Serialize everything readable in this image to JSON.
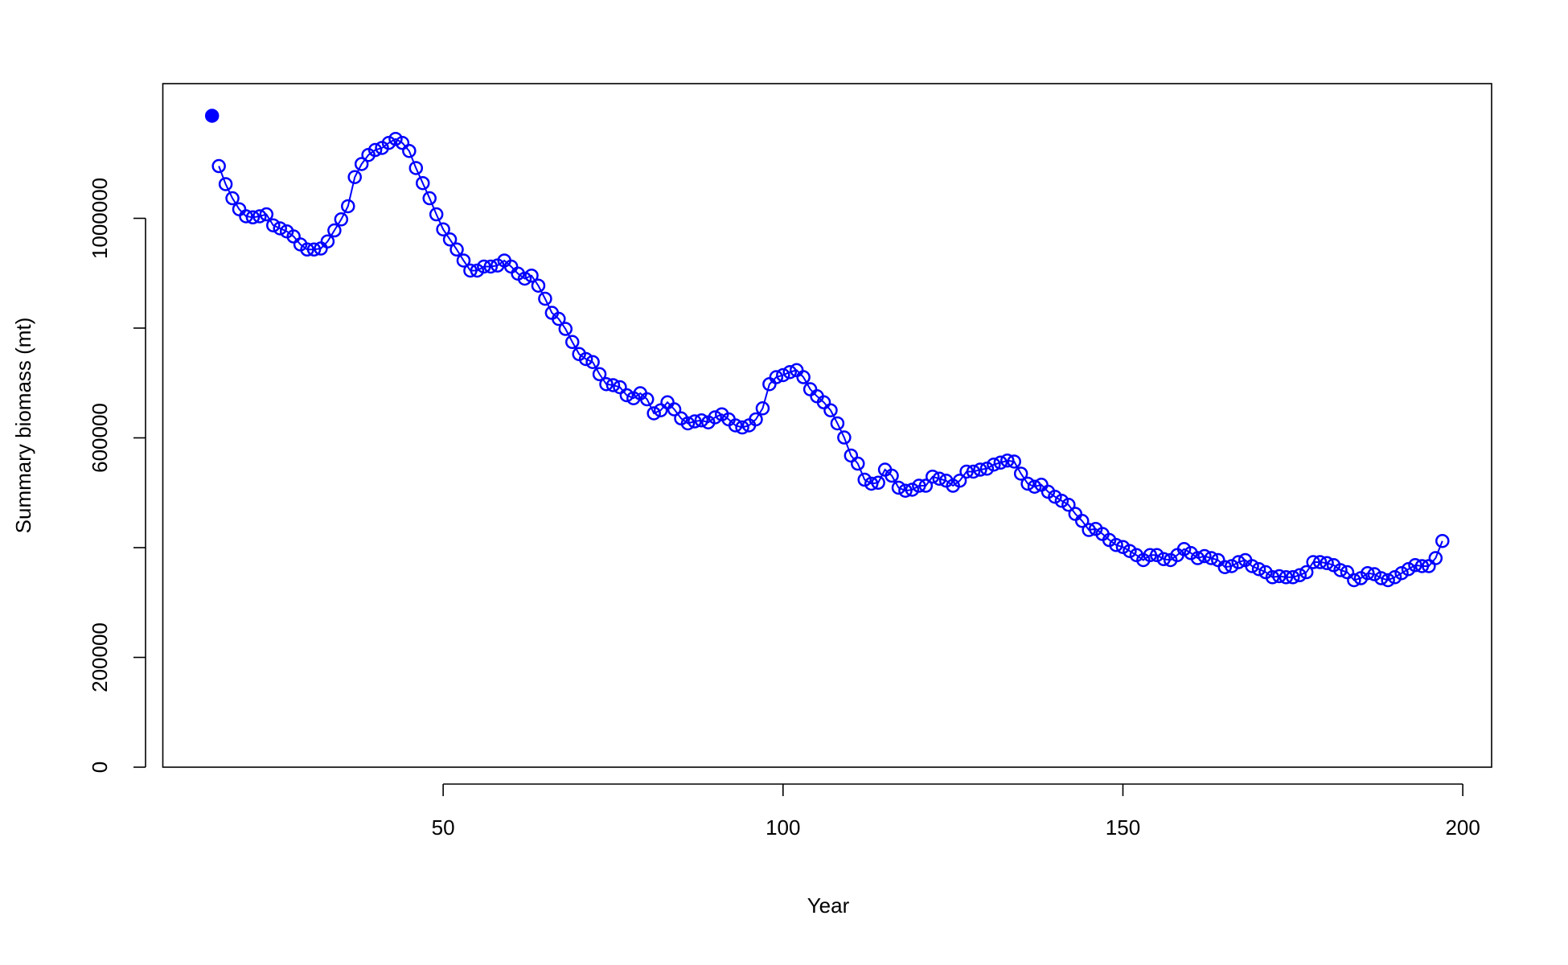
{
  "chart_data": {
    "type": "line",
    "xlabel": "Year",
    "ylabel": "Summary biomass (mt)",
    "xlim": [
      8.76,
      204.24
    ],
    "xticks": [
      50,
      100,
      150,
      200
    ],
    "ylim": [
      0,
      1245400
    ],
    "yticks": [
      0,
      200000,
      {
        "value": 400000,
        "label": null
      },
      600000,
      {
        "value": 800000,
        "label": null
      },
      1000000
    ],
    "series": [
      {
        "color": "#0000ff",
        "marker": "filled",
        "line": false,
        "x": [
          16
        ],
        "values": [
          1186800
        ]
      },
      {
        "color": "#0000ff",
        "marker": "open",
        "line": true,
        "x": [
          17,
          18,
          19,
          20,
          21,
          22,
          23,
          24,
          25,
          26,
          27,
          28,
          29,
          30,
          31,
          32,
          33,
          34,
          35,
          36,
          37,
          38,
          39,
          40,
          41,
          42,
          43,
          44,
          45,
          46,
          47,
          48,
          49,
          50,
          51,
          52,
          53,
          54,
          55,
          56,
          57,
          58,
          59,
          60,
          61,
          62,
          63,
          64,
          65,
          66,
          67,
          68,
          69,
          70,
          71,
          72,
          73,
          74,
          75,
          76,
          77,
          78,
          79,
          80,
          81,
          82,
          83,
          84,
          85,
          86,
          87,
          88,
          89,
          90,
          91,
          92,
          93,
          94,
          95,
          96,
          97,
          98,
          99,
          100,
          101,
          102,
          103,
          104,
          105,
          106,
          107,
          108,
          109,
          110,
          111,
          112,
          113,
          114,
          115,
          116,
          117,
          118,
          119,
          120,
          121,
          122,
          123,
          124,
          125,
          126,
          127,
          128,
          129,
          130,
          131,
          132,
          133,
          134,
          135,
          136,
          137,
          138,
          139,
          140,
          141,
          142,
          143,
          144,
          145,
          146,
          147,
          148,
          149,
          150,
          151,
          152,
          153,
          154,
          155,
          156,
          157,
          158,
          159,
          160,
          161,
          162,
          163,
          164,
          165,
          166,
          167,
          168,
          169,
          170,
          171,
          172,
          173,
          174,
          175,
          176,
          177,
          178,
          179,
          180,
          181,
          182,
          183,
          184,
          185,
          186,
          187,
          188,
          189,
          190,
          191,
          192,
          193,
          194,
          195,
          196,
          197
        ],
        "values": [
          1095200,
          1062300,
          1036600,
          1016500,
          1003700,
          1001800,
          1003700,
          1007300,
          987200,
          981700,
          976200,
          967000,
          952400,
          943200,
          943200,
          945000,
          957900,
          978000,
          998100,
          1022000,
          1075100,
          1098900,
          1115400,
          1124500,
          1128200,
          1137400,
          1144700,
          1137400,
          1122700,
          1091600,
          1064100,
          1036600,
          1007300,
          979900,
          961500,
          943200,
          923100,
          904800,
          904800,
          912100,
          912100,
          914000,
          923100,
          912100,
          899300,
          890100,
          895600,
          877300,
          853500,
          827800,
          816800,
          798500,
          774700,
          752700,
          743600,
          738100,
          716100,
          697800,
          696000,
          692300,
          677700,
          672200,
          681300,
          670300,
          644700,
          650200,
          664800,
          652000,
          635500,
          626400,
          630000,
          631900,
          628200,
          637400,
          642900,
          633700,
          622700,
          619000,
          622700,
          633700,
          653800,
          697800,
          710600,
          714300,
          719800,
          723400,
          710600,
          688600,
          675800,
          664800,
          650200,
          626400,
          600700,
          567800,
          553100,
          523800,
          516500,
          518300,
          542100,
          531100,
          509200,
          503700,
          505500,
          512800,
          512800,
          529300,
          525600,
          522000,
          512800,
          522000,
          538500,
          538500,
          542100,
          543900,
          551300,
          554900,
          558600,
          556800,
          534800,
          516500,
          511000,
          514600,
          501800,
          492700,
          485300,
          478000,
          461500,
          448700,
          432200,
          434100,
          424900,
          413900,
          404800,
          401100,
          393800,
          386400,
          377300,
          386400,
          386400,
          379100,
          377300,
          386400,
          397400,
          390100,
          380900,
          384600,
          380900,
          377300,
          364500,
          366300,
          373600,
          377300,
          366300,
          360800,
          355300,
          346100,
          348000,
          346100,
          346100,
          349800,
          355300,
          373600,
          373600,
          371800,
          368100,
          359000,
          355300,
          340700,
          344300,
          353500,
          351600,
          344300,
          340700,
          346100,
          353500,
          360800,
          368100,
          366300,
          366300,
          380900,
          412100
        ]
      }
    ]
  }
}
